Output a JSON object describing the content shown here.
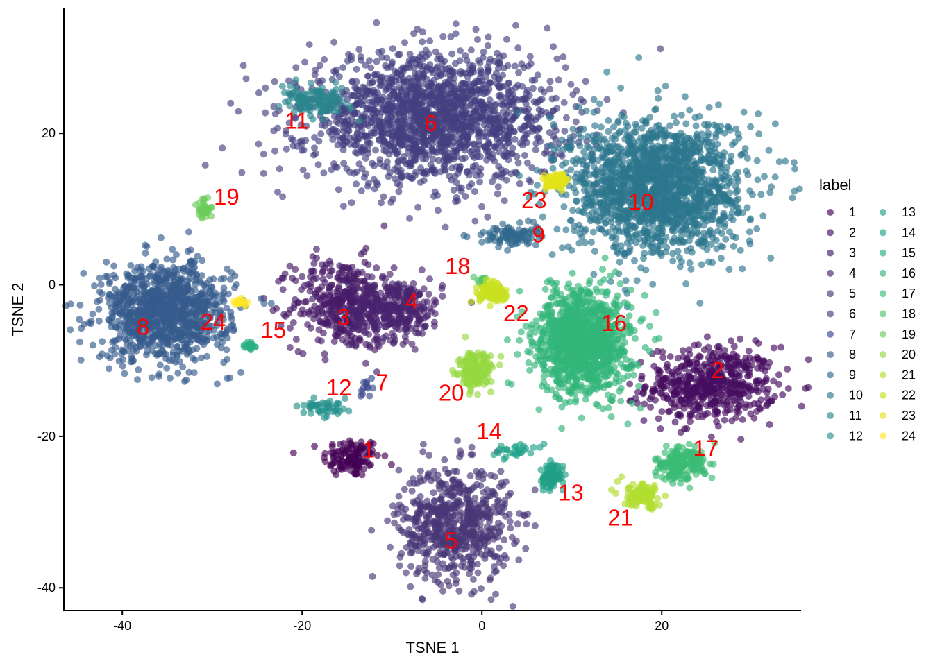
{
  "chart_data": {
    "type": "scatter",
    "xlabel": "TSNE 1",
    "ylabel": "TSNE 2",
    "xlim": [
      -46.5,
      35.5
    ],
    "ylim": [
      -43,
      36.5
    ],
    "x_ticks": [
      -40,
      -20,
      0,
      20
    ],
    "y_ticks": [
      20,
      0,
      -20,
      -40
    ],
    "x_tick_labels": [
      "-40",
      "-20",
      "0",
      "20"
    ],
    "y_tick_labels": [
      "20",
      "0",
      "-20",
      "-40"
    ],
    "legend": {
      "title": "label",
      "placement": "right",
      "columns": 2
    },
    "point_opacity": 0.65,
    "clusters": [
      {
        "label": "1",
        "color": "#440154",
        "cx": -14.5,
        "cy": -22.8,
        "sx": 1.6,
        "sy": 1.3,
        "n": 120,
        "label_x": -12.6,
        "label_y": -21.7
      },
      {
        "label": "2",
        "color": "#450d5f",
        "cx": 25.5,
        "cy": -13.2,
        "sx": 3.6,
        "sy": 2.5,
        "n": 520,
        "label_x": 26.2,
        "label_y": -11.2
      },
      {
        "label": "3",
        "color": "#461a67",
        "cx": -15.5,
        "cy": -2.5,
        "sx": 2.8,
        "sy": 3.0,
        "n": 380,
        "label_x": -15.4,
        "label_y": -4.2
      },
      {
        "label": "4",
        "color": "#48246f",
        "cx": -9.5,
        "cy": -3.2,
        "sx": 2.6,
        "sy": 2.0,
        "n": 300,
        "label_x": -7.8,
        "label_y": -2.1
      },
      {
        "label": "5",
        "color": "#483777",
        "cx": -3.0,
        "cy": -31.5,
        "sx": 3.1,
        "sy": 3.8,
        "n": 650,
        "label_x": -3.4,
        "label_y": -33.7
      },
      {
        "label": "6",
        "color": "#433f7f",
        "cx": -5.5,
        "cy": 22.0,
        "sx": 7.0,
        "sy": 4.2,
        "n": 1700,
        "label_x": -5.7,
        "label_y": 21.4
      },
      {
        "label": "7",
        "color": "#39478a",
        "cx": -12.9,
        "cy": -13.4,
        "sx": 0.4,
        "sy": 0.7,
        "n": 12,
        "label_x": -11.1,
        "label_y": -12.8
      },
      {
        "label": "8",
        "color": "#355b8c",
        "cx": -35.2,
        "cy": -3.6,
        "sx": 3.6,
        "sy": 3.2,
        "n": 1000,
        "label_x": -37.7,
        "label_y": -5.5
      },
      {
        "label": "9",
        "color": "#2f688e",
        "cx": 3.0,
        "cy": 6.5,
        "sx": 1.6,
        "sy": 0.7,
        "n": 90,
        "label_x": 6.3,
        "label_y": 6.7
      },
      {
        "label": "10",
        "color": "#2c778e",
        "cx": 19.5,
        "cy": 13.0,
        "sx": 4.8,
        "sy": 4.5,
        "n": 1700,
        "label_x": 17.7,
        "label_y": 11.0
      },
      {
        "label": "11",
        "color": "#2a858e",
        "cx": -18.5,
        "cy": 24.2,
        "sx": 1.8,
        "sy": 0.9,
        "n": 120,
        "label_x": -20.6,
        "label_y": 21.7
      },
      {
        "label": "12",
        "color": "#25918c",
        "cx": -17.5,
        "cy": -16.4,
        "sx": 1.4,
        "sy": 0.5,
        "n": 45,
        "label_x": -15.9,
        "label_y": -13.5
      },
      {
        "label": "13",
        "color": "#20a086",
        "cx": 7.8,
        "cy": -25.3,
        "sx": 0.6,
        "sy": 1.0,
        "n": 90,
        "label_x": 9.9,
        "label_y": -27.4
      },
      {
        "label": "14",
        "color": "#1fa188",
        "cx": 3.5,
        "cy": -21.8,
        "sx": 1.2,
        "sy": 0.4,
        "n": 28,
        "label_x": 0.8,
        "label_y": -19.3
      },
      {
        "label": "15",
        "color": "#29af7f",
        "cx": -26.0,
        "cy": -8.2,
        "sx": 0.4,
        "sy": 0.3,
        "n": 18,
        "label_x": -23.2,
        "label_y": -5.9
      },
      {
        "label": "16",
        "color": "#33b679",
        "cx": 11.3,
        "cy": -7.5,
        "sx": 2.6,
        "sy": 3.5,
        "n": 1100,
        "label_x": 14.7,
        "label_y": -5.0
      },
      {
        "label": "17",
        "color": "#3bbb75",
        "cx": 22.0,
        "cy": -23.6,
        "sx": 1.4,
        "sy": 1.1,
        "n": 180,
        "label_x": 24.9,
        "label_y": -21.5
      },
      {
        "label": "18",
        "color": "#50c46a",
        "cx": -0.1,
        "cy": 0.6,
        "sx": 0.3,
        "sy": 0.3,
        "n": 12,
        "label_x": -2.7,
        "label_y": 2.5
      },
      {
        "label": "19",
        "color": "#6ccd5a",
        "cx": -30.8,
        "cy": 10.0,
        "sx": 0.4,
        "sy": 0.6,
        "n": 45,
        "label_x": -28.4,
        "label_y": 11.7
      },
      {
        "label": "20",
        "color": "#95d840",
        "cx": -0.8,
        "cy": -11.5,
        "sx": 0.9,
        "sy": 1.2,
        "n": 170,
        "label_x": -3.4,
        "label_y": -14.2
      },
      {
        "label": "21",
        "color": "#b0dd2f",
        "cx": 17.9,
        "cy": -27.9,
        "sx": 1.1,
        "sy": 0.8,
        "n": 110,
        "label_x": 15.4,
        "label_y": -30.7
      },
      {
        "label": "22",
        "color": "#c8e020",
        "cx": 1.4,
        "cy": -1.1,
        "sx": 0.9,
        "sy": 0.6,
        "n": 110,
        "label_x": 3.8,
        "label_y": -3.7
      },
      {
        "label": "23",
        "color": "#e2e418",
        "cx": 8.3,
        "cy": 13.6,
        "sx": 0.6,
        "sy": 0.5,
        "n": 70,
        "label_x": 5.8,
        "label_y": 11.2
      },
      {
        "label": "24",
        "color": "#fde725",
        "cx": -26.8,
        "cy": -2.3,
        "sx": 0.4,
        "sy": 0.2,
        "n": 16,
        "label_x": -29.9,
        "label_y": -4.8
      }
    ]
  }
}
